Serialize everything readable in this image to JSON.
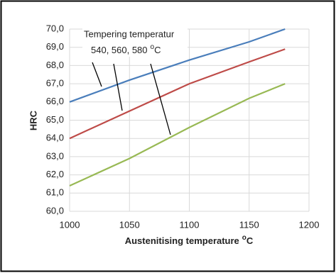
{
  "chart_data": {
    "type": "line",
    "x_label": "Austenitising temperature",
    "x_label_degree": "o",
    "x_label_unit": "C",
    "y_label": "HRC",
    "annotation_line1": "Tempering temperatur",
    "annotation_line2": "540, 560, 580",
    "annotation_degree": "o",
    "annotation_unit": "C",
    "x": [
      1000,
      1050,
      1100,
      1150,
      1180
    ],
    "series": [
      {
        "color": "#4a7ebb",
        "values": [
          66.0,
          67.2,
          68.3,
          69.3,
          70.0
        ]
      },
      {
        "color": "#be4b48",
        "values": [
          64.0,
          65.5,
          67.0,
          68.2,
          68.9
        ]
      },
      {
        "color": "#98b954",
        "values": [
          61.4,
          62.9,
          64.6,
          66.2,
          67.0
        ]
      }
    ],
    "xlim": [
      1000,
      1200
    ],
    "xticks": [
      1000,
      1050,
      1100,
      1150,
      1200
    ],
    "ylim": [
      60,
      70
    ],
    "yticks": [
      {
        "value": 60,
        "label": "60,0"
      },
      {
        "value": 61,
        "label": "61,0"
      },
      {
        "value": 62,
        "label": "62,0"
      },
      {
        "value": 63,
        "label": "63,0"
      },
      {
        "value": 64,
        "label": "64,0"
      },
      {
        "value": 65,
        "label": "65,0"
      },
      {
        "value": 66,
        "label": "66,0"
      },
      {
        "value": 67,
        "label": "67,0"
      },
      {
        "value": 68,
        "label": "68,0"
      },
      {
        "value": 69,
        "label": "69,0"
      },
      {
        "value": 70,
        "label": "70,0"
      }
    ],
    "grid": true
  }
}
